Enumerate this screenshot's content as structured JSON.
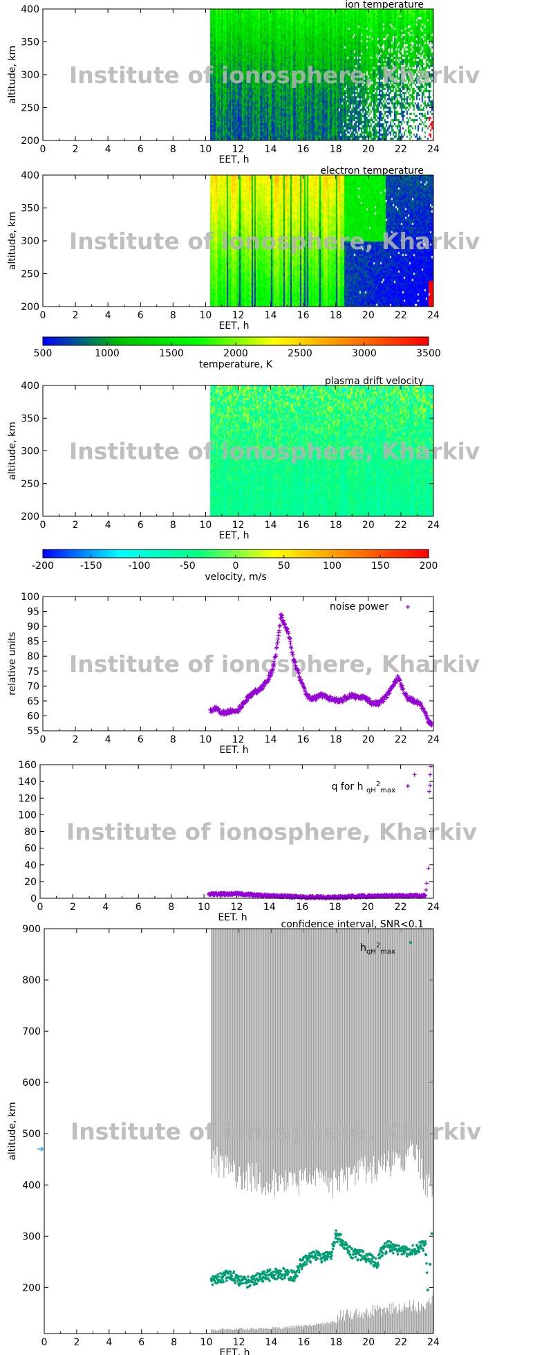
{
  "watermark": "Institute of ionosphere, Kharkiv",
  "chart_data": [
    {
      "id": "ion",
      "type": "heatmap",
      "title": "ion temperature",
      "xlabel": "EET, h",
      "ylabel": "altitude, km",
      "xlim": [
        0,
        24
      ],
      "ylim": [
        200,
        400
      ],
      "xticks": [
        0,
        2,
        4,
        6,
        8,
        10,
        12,
        14,
        16,
        18,
        20,
        22,
        24
      ],
      "yticks": [
        200,
        250,
        300,
        350,
        400
      ],
      "data_start_h": 10.3,
      "colorscale": "temperature",
      "typical_K": [
        800,
        1200
      ]
    },
    {
      "id": "elec",
      "type": "heatmap",
      "title": "electron temperature",
      "xlabel": "EET, h",
      "ylabel": "altitude, km",
      "xlim": [
        0,
        24
      ],
      "ylim": [
        200,
        400
      ],
      "xticks": [
        0,
        2,
        4,
        6,
        8,
        10,
        12,
        14,
        16,
        18,
        20,
        22,
        24
      ],
      "yticks": [
        200,
        250,
        300,
        350,
        400
      ],
      "data_start_h": 10.3,
      "colorscale": "temperature",
      "typical_K": [
        1800,
        2400
      ]
    },
    {
      "id": "tcb",
      "type": "colorbar",
      "label": "temperature, K",
      "range": [
        500,
        3500
      ],
      "ticks": [
        500,
        1000,
        1500,
        2000,
        2500,
        3000,
        3500
      ],
      "colors": [
        "#0000ff",
        "#00c000",
        "#00ff00",
        "#ffff00",
        "#ff8000",
        "#ff0000"
      ]
    },
    {
      "id": "vel",
      "type": "heatmap",
      "title": "plasma drift velocity",
      "xlabel": "EET, h",
      "ylabel": "altitude, km",
      "xlim": [
        0,
        24
      ],
      "ylim": [
        200,
        400
      ],
      "xticks": [
        0,
        2,
        4,
        6,
        8,
        10,
        12,
        14,
        16,
        18,
        20,
        22,
        24
      ],
      "yticks": [
        200,
        250,
        300,
        350,
        400
      ],
      "data_start_h": 10.3,
      "colorscale": "velocity",
      "typical_ms": [
        -40,
        20
      ]
    },
    {
      "id": "vcb",
      "type": "colorbar",
      "label": "velocity, m/s",
      "range": [
        -200,
        200
      ],
      "ticks": [
        -200,
        -150,
        -100,
        -50,
        0,
        50,
        100,
        150,
        200
      ],
      "colors": [
        "#0000ff",
        "#00ffff",
        "#00ff80",
        "#ffff00",
        "#ff8000",
        "#ff0000"
      ]
    },
    {
      "id": "noise",
      "type": "scatter",
      "legend": "noise power",
      "xlabel": "EET. h",
      "ylabel": "relative units",
      "color": "#9400d3",
      "xlim": [
        0,
        24
      ],
      "ylim": [
        55,
        100
      ],
      "xticks": [
        0,
        2,
        4,
        6,
        8,
        10,
        12,
        14,
        16,
        18,
        20,
        22,
        24
      ],
      "yticks": [
        55,
        60,
        65,
        70,
        75,
        80,
        85,
        90,
        95,
        100
      ],
      "points": [
        [
          10.3,
          62
        ],
        [
          10.6,
          62.5
        ],
        [
          11,
          61
        ],
        [
          11.5,
          61.5
        ],
        [
          12,
          62
        ],
        [
          12.3,
          64
        ],
        [
          12.6,
          66
        ],
        [
          13,
          68
        ],
        [
          13.4,
          69
        ],
        [
          13.8,
          72
        ],
        [
          14.1,
          75
        ],
        [
          14.3,
          80
        ],
        [
          14.5,
          88
        ],
        [
          14.65,
          94
        ],
        [
          14.8,
          91
        ],
        [
          15,
          89
        ],
        [
          15.2,
          85
        ],
        [
          15.4,
          79
        ],
        [
          15.6,
          76
        ],
        [
          15.9,
          71
        ],
        [
          16.2,
          67
        ],
        [
          16.5,
          65.5
        ],
        [
          16.8,
          66
        ],
        [
          17.1,
          67
        ],
        [
          17.5,
          66
        ],
        [
          17.9,
          65.5
        ],
        [
          18.3,
          65
        ],
        [
          18.6,
          66
        ],
        [
          19,
          67
        ],
        [
          19.4,
          66
        ],
        [
          19.8,
          66
        ],
        [
          20.2,
          64.5
        ],
        [
          20.6,
          64
        ],
        [
          21,
          66
        ],
        [
          21.3,
          68
        ],
        [
          21.6,
          71
        ],
        [
          21.85,
          73
        ],
        [
          22.1,
          69
        ],
        [
          22.4,
          66
        ],
        [
          22.8,
          65
        ],
        [
          23.2,
          64
        ],
        [
          23.5,
          61
        ],
        [
          23.7,
          58
        ],
        [
          23.9,
          57.5
        ]
      ]
    },
    {
      "id": "q",
      "type": "scatter",
      "legend": "q for h",
      "legend_sub": "qH",
      "legend_sup": "2",
      "legend_sub2": "max",
      "xlabel": "EET. h",
      "color": "#9400d3",
      "xlim": [
        0,
        24
      ],
      "ylim": [
        0,
        160
      ],
      "xticks": [
        0,
        2,
        4,
        6,
        8,
        10,
        12,
        14,
        16,
        18,
        20,
        22,
        24
      ],
      "yticks": [
        0,
        20,
        40,
        60,
        80,
        100,
        120,
        140,
        160
      ],
      "points": [
        [
          10.3,
          5
        ],
        [
          11,
          5
        ],
        [
          12,
          5.5
        ],
        [
          13,
          4
        ],
        [
          14,
          3
        ],
        [
          15,
          2.5
        ],
        [
          16,
          1.5
        ],
        [
          17,
          1.5
        ],
        [
          18,
          1
        ],
        [
          19,
          2
        ],
        [
          20,
          2.5
        ],
        [
          21,
          3
        ],
        [
          22,
          3
        ],
        [
          23,
          3
        ],
        [
          23.5,
          3
        ],
        [
          23.55,
          10
        ],
        [
          23.6,
          18
        ],
        [
          23.7,
          36
        ],
        [
          23.75,
          128
        ],
        [
          23.8,
          135
        ],
        [
          23.8,
          148
        ],
        [
          23.85,
          158
        ],
        [
          22.85,
          148
        ]
      ]
    },
    {
      "id": "h",
      "type": "scatter",
      "title": "confidence interval, SNR<0.1",
      "legend": "h",
      "legend_sub": "qH",
      "legend_sup": "2",
      "legend_sub2": "max",
      "xlabel": "EET, h",
      "ylabel": "altitude, km",
      "color": "#009e73",
      "band_color": "#909090",
      "marker_color": "#56b4e9",
      "xlim": [
        0,
        24
      ],
      "ylim": [
        110,
        900
      ],
      "xticks": [
        0,
        2,
        4,
        6,
        8,
        10,
        12,
        14,
        16,
        18,
        20,
        22,
        24
      ],
      "yticks": [
        200,
        300,
        400,
        500,
        600,
        700,
        800,
        900
      ],
      "marker_altitude": 470,
      "points": [
        [
          10.3,
          215
        ],
        [
          11,
          220
        ],
        [
          11.5,
          225
        ],
        [
          12,
          215
        ],
        [
          12.5,
          210
        ],
        [
          13,
          215
        ],
        [
          13.5,
          220
        ],
        [
          14,
          225
        ],
        [
          14.5,
          228
        ],
        [
          15,
          225
        ],
        [
          15.5,
          222
        ],
        [
          15.8,
          245
        ],
        [
          16.2,
          255
        ],
        [
          16.7,
          262
        ],
        [
          17.2,
          258
        ],
        [
          17.7,
          265
        ],
        [
          18,
          300
        ],
        [
          18.4,
          290
        ],
        [
          18.8,
          270
        ],
        [
          19.2,
          265
        ],
        [
          19.7,
          260
        ],
        [
          20.2,
          255
        ],
        [
          20.5,
          245
        ],
        [
          20.8,
          270
        ],
        [
          21.2,
          280
        ],
        [
          21.7,
          275
        ],
        [
          22.2,
          270
        ],
        [
          22.7,
          272
        ],
        [
          23.2,
          280
        ],
        [
          23.5,
          285
        ],
        [
          23.65,
          195
        ],
        [
          23.8,
          245
        ],
        [
          23.9,
          305
        ]
      ],
      "upper_band_lower_edge": [
        [
          10.3,
          480
        ],
        [
          11,
          470
        ],
        [
          12,
          450
        ],
        [
          13,
          445
        ],
        [
          14,
          435
        ],
        [
          15,
          430
        ],
        [
          16,
          440
        ],
        [
          17,
          445
        ],
        [
          18,
          430
        ],
        [
          19,
          450
        ],
        [
          20,
          460
        ],
        [
          21,
          470
        ],
        [
          22,
          480
        ],
        [
          23,
          490
        ],
        [
          23.6,
          420
        ],
        [
          24,
          440
        ]
      ],
      "lower_band_upper_edge": [
        [
          10.3,
          115
        ],
        [
          14,
          118
        ],
        [
          16,
          122
        ],
        [
          18,
          130
        ],
        [
          20,
          140
        ],
        [
          22,
          150
        ],
        [
          23.5,
          150
        ],
        [
          24,
          165
        ]
      ]
    }
  ]
}
